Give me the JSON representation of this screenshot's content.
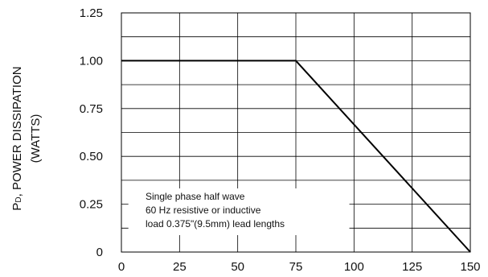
{
  "chart_data": {
    "type": "line",
    "title": "",
    "ylabel": {
      "prefix": "P",
      "subscript": "D",
      "line1_rest": ", POWER DISSIPATION",
      "line2": "(WATTS)"
    },
    "xlabel": "",
    "xlim": [
      0,
      150
    ],
    "ylim": [
      0,
      1.25
    ],
    "x_ticks": [
      0,
      25,
      50,
      75,
      100,
      125,
      150
    ],
    "x_tick_labels": [
      "0",
      "25",
      "50",
      "75",
      "100",
      "125",
      "150"
    ],
    "y_ticks": [
      0,
      0.25,
      0.5,
      0.75,
      1.0,
      1.25
    ],
    "y_tick_labels": [
      "0",
      "0.25",
      "0.50",
      "0.75",
      "1.00",
      "1.25"
    ],
    "grid": {
      "x_every": 25,
      "y_every": 0.125
    },
    "series": [
      {
        "x": [
          0,
          75,
          150
        ],
        "y": [
          1.0,
          1.0,
          0.0
        ],
        "color": "#000000"
      }
    ],
    "annotation": {
      "lines": [
        "Single phase half wave",
        "60 Hz resistive or inductive",
        "load 0.375\"(9.5mm) lead lengths"
      ],
      "position": "lower-left"
    }
  }
}
